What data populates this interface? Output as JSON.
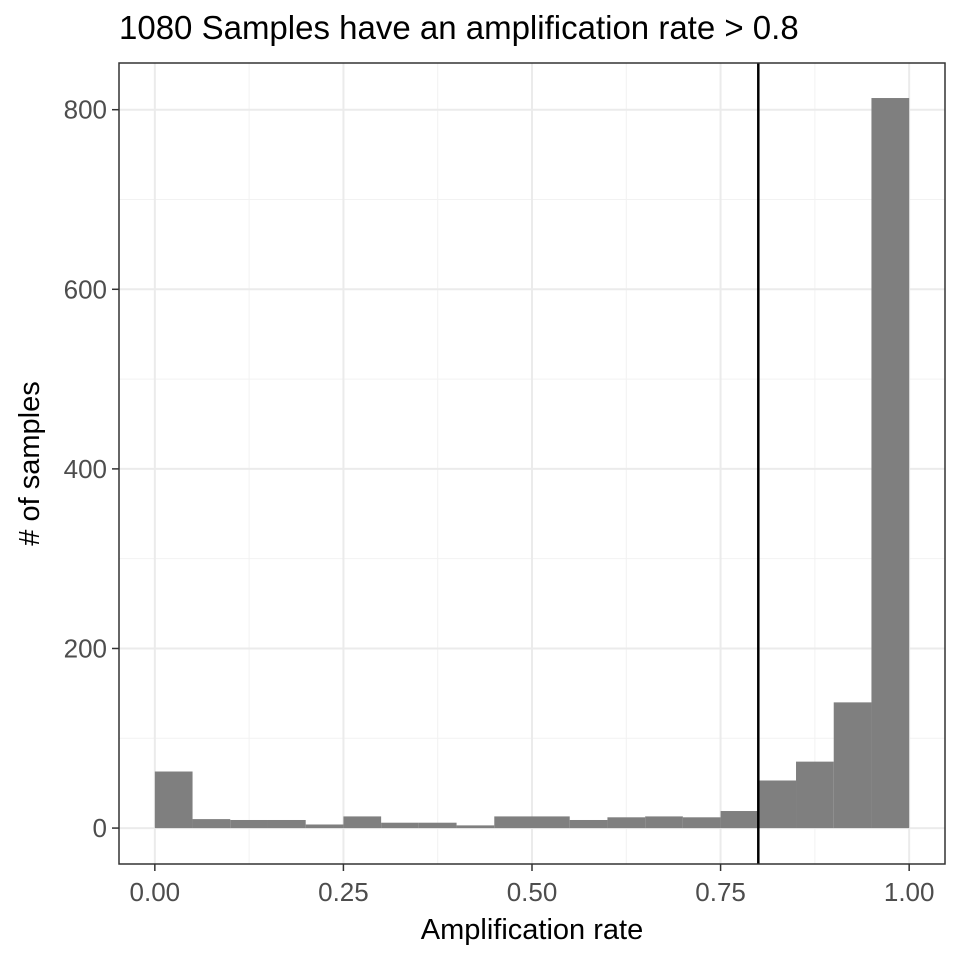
{
  "chart_data": {
    "type": "bar",
    "title": "1080 Samples have an amplification rate > 0.8",
    "xlabel": "Amplification rate",
    "ylabel": "# of samples",
    "xlim": [
      -0.0475,
      1.0475
    ],
    "ylim": [
      -40,
      852
    ],
    "x_ticks": [
      0.0,
      0.25,
      0.5,
      0.75,
      1.0
    ],
    "x_tick_labels": [
      "0.00",
      "0.25",
      "0.50",
      "0.75",
      "1.00"
    ],
    "y_ticks": [
      0,
      200,
      400,
      600,
      800
    ],
    "y_tick_labels": [
      "0",
      "200",
      "400",
      "600",
      "800"
    ],
    "bin_width": 0.05,
    "bins": [
      {
        "x0": 0.0,
        "x1": 0.05,
        "count": 63
      },
      {
        "x0": 0.05,
        "x1": 0.1,
        "count": 10
      },
      {
        "x0": 0.1,
        "x1": 0.15,
        "count": 9
      },
      {
        "x0": 0.15,
        "x1": 0.2,
        "count": 9
      },
      {
        "x0": 0.2,
        "x1": 0.25,
        "count": 4
      },
      {
        "x0": 0.25,
        "x1": 0.3,
        "count": 13
      },
      {
        "x0": 0.3,
        "x1": 0.35,
        "count": 6
      },
      {
        "x0": 0.35,
        "x1": 0.4,
        "count": 6
      },
      {
        "x0": 0.4,
        "x1": 0.45,
        "count": 3
      },
      {
        "x0": 0.45,
        "x1": 0.5,
        "count": 13
      },
      {
        "x0": 0.5,
        "x1": 0.55,
        "count": 13
      },
      {
        "x0": 0.55,
        "x1": 0.6,
        "count": 9
      },
      {
        "x0": 0.6,
        "x1": 0.65,
        "count": 12
      },
      {
        "x0": 0.65,
        "x1": 0.7,
        "count": 13
      },
      {
        "x0": 0.7,
        "x1": 0.75,
        "count": 12
      },
      {
        "x0": 0.75,
        "x1": 0.8,
        "count": 19
      },
      {
        "x0": 0.8,
        "x1": 0.85,
        "count": 53
      },
      {
        "x0": 0.85,
        "x1": 0.9,
        "count": 74
      },
      {
        "x0": 0.9,
        "x1": 0.95,
        "count": 140
      },
      {
        "x0": 0.95,
        "x1": 1.0,
        "count": 813
      }
    ],
    "threshold_line": {
      "x": 0.8
    },
    "grid": true,
    "legend": "none",
    "bar_color": "#7f7f7f"
  }
}
